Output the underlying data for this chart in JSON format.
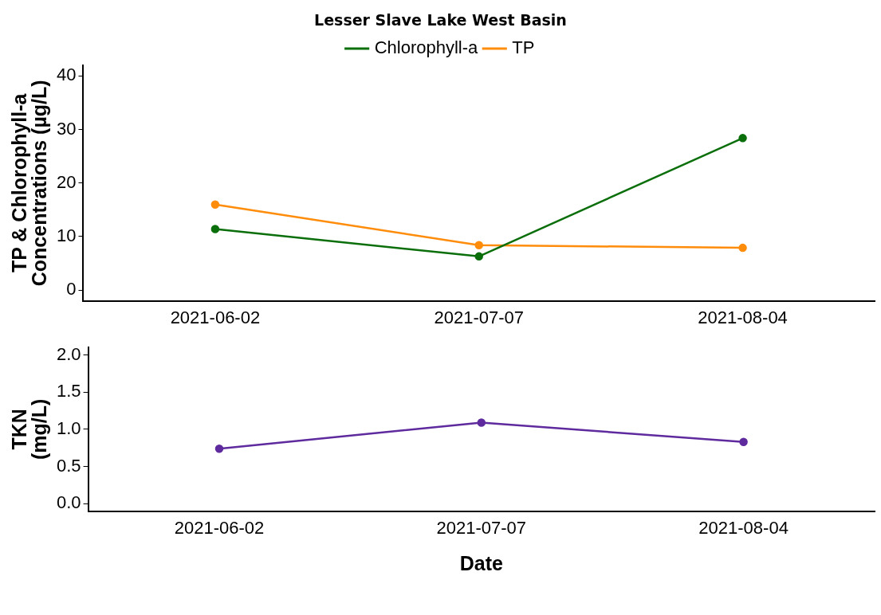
{
  "chart_data": [
    {
      "type": "line",
      "title": "Lesser Slave Lake West Basin",
      "ylabel": "TP & Chlorophyll-a\nConcentrations (µg/L)",
      "categories": [
        "2021-06-02",
        "2021-07-07",
        "2021-08-04"
      ],
      "series": [
        {
          "name": "Chlorophyll-a",
          "color": "#0a6e0a",
          "values": [
            11.4,
            6.3,
            28.4
          ]
        },
        {
          "name": "TP",
          "color": "#ff8c0a",
          "values": [
            16.0,
            8.4,
            7.9
          ]
        }
      ],
      "ylim": [
        -2,
        42
      ],
      "yticks": [
        0,
        10,
        20,
        30,
        40
      ],
      "grid": false,
      "legend": "top",
      "marker": "circle",
      "line_style": "solid"
    },
    {
      "type": "line",
      "xlabel": "Date",
      "ylabel": "TKN\n(mg/L)",
      "categories": [
        "2021-06-02",
        "2021-07-07",
        "2021-08-04"
      ],
      "series": [
        {
          "color": "#5e2a9e",
          "values": [
            0.74,
            1.09,
            0.83
          ]
        }
      ],
      "ylim": [
        -0.1,
        2.1
      ],
      "yticks": [
        {
          "value": 0,
          "label": "0.0"
        },
        {
          "value": 0.5,
          "label": "0.5"
        },
        {
          "value": 1,
          "label": "1.0"
        },
        {
          "value": 1.5,
          "label": "1.5"
        },
        {
          "value": 2,
          "label": "2.0"
        }
      ],
      "grid": false,
      "legend": false,
      "marker": "circle",
      "line_style": "solid"
    }
  ]
}
